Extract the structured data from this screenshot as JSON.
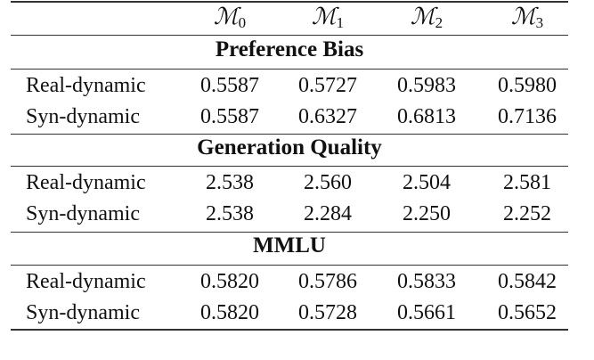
{
  "columns": [
    {
      "symbol": "ℳ",
      "sub": "0"
    },
    {
      "symbol": "ℳ",
      "sub": "1"
    },
    {
      "symbol": "ℳ",
      "sub": "2"
    },
    {
      "symbol": "ℳ",
      "sub": "3"
    }
  ],
  "sections": [
    {
      "title": "Preference Bias",
      "rows": [
        {
          "label": "Real-dynamic",
          "values": [
            "0.5587",
            "0.5727",
            "0.5983",
            "0.5980"
          ]
        },
        {
          "label": "Syn-dynamic",
          "values": [
            "0.5587",
            "0.6327",
            "0.6813",
            "0.7136"
          ]
        }
      ]
    },
    {
      "title": "Generation Quality",
      "rows": [
        {
          "label": "Real-dynamic",
          "values": [
            "2.538",
            "2.560",
            "2.504",
            "2.581"
          ]
        },
        {
          "label": "Syn-dynamic",
          "values": [
            "2.538",
            "2.284",
            "2.250",
            "2.252"
          ]
        }
      ]
    },
    {
      "title": "MMLU",
      "rows": [
        {
          "label": "Real-dynamic",
          "values": [
            "0.5820",
            "0.5786",
            "0.5833",
            "0.5842"
          ]
        },
        {
          "label": "Syn-dynamic",
          "values": [
            "0.5820",
            "0.5728",
            "0.5661",
            "0.5652"
          ]
        }
      ]
    }
  ]
}
